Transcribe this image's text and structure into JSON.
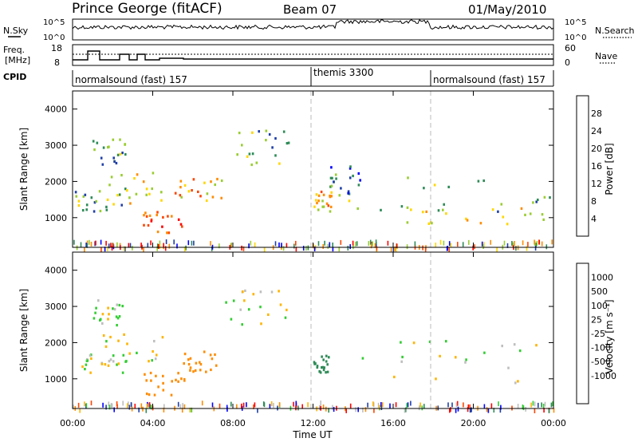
{
  "header": {
    "station": "Prince George (fitACF)",
    "beam": "Beam 07",
    "date": "01/May/2010"
  },
  "strips": {
    "nsky_label": "N.Sky",
    "nsearch_label": "N.Search",
    "nsky_ticks": [
      "10^5",
      "10^0"
    ],
    "nsearch_ticks": [
      "10^5",
      "10^0"
    ],
    "freq_label_1": "Freq.",
    "freq_label_2": "[MHz]",
    "freq_ticks": [
      "18",
      "8"
    ],
    "nave_label": "Nave",
    "nave_ticks": [
      "60",
      "0"
    ],
    "cpid_label": "CPID"
  },
  "cpid_segments": [
    {
      "label": "normalsound (fast) 157",
      "start_h": 0,
      "end_h": 12
    },
    {
      "label": "themis 3300",
      "start_h": 12,
      "end_h": 18
    },
    {
      "label": "normalsound (fast) 157",
      "start_h": 18,
      "end_h": 24
    }
  ],
  "colors": {
    "power": [
      "#0000ff",
      "#1f3fa8",
      "#2e8b57",
      "#9acd32",
      "#ffd700",
      "#ff8c00",
      "#ff4500",
      "#ff0000"
    ],
    "velocity": [
      "#ff0000",
      "#ff4500",
      "#ff8c00",
      "#ffb400",
      "#bebebe",
      "#bebebe",
      "#32cd32",
      "#2e8b57",
      "#1f3fa8",
      "#0000ff"
    ]
  },
  "chart_data": [
    {
      "type": "heatmap",
      "name": "power",
      "ylabel": "Slant Range [km]",
      "ylim": [
        180,
        4500
      ],
      "yticks": [
        "1000",
        "2000",
        "3000",
        "4000"
      ],
      "colorbar_label": "Power [dB]",
      "colorbar_ticks": [
        "4",
        "8",
        "12",
        "16",
        "20",
        "24",
        "28"
      ],
      "xlim_hours": [
        0,
        24
      ],
      "xticks": [
        "00:00",
        "04:00",
        "08:00",
        "12:00",
        "16:00",
        "20:00",
        "00:00"
      ],
      "xlabel": "Time UT",
      "echo_regions": [
        {
          "t": [
            0.9,
            2.6
          ],
          "r": [
            2500,
            3200
          ],
          "p": 12
        },
        {
          "t": [
            0.0,
            2.5
          ],
          "r": [
            1200,
            1800
          ],
          "p": 12
        },
        {
          "t": [
            1.5,
            4.5
          ],
          "r": [
            1400,
            2300
          ],
          "p": 16
        },
        {
          "t": [
            3.5,
            5.6
          ],
          "r": [
            600,
            1200
          ],
          "p": 26
        },
        {
          "t": [
            4.5,
            7.5
          ],
          "r": [
            1500,
            2100
          ],
          "p": 20
        },
        {
          "t": [
            7.5,
            10.8
          ],
          "r": [
            2400,
            3500
          ],
          "p": 12
        },
        {
          "t": [
            12.0,
            12.9
          ],
          "r": [
            1200,
            1800
          ],
          "p": 20
        },
        {
          "t": [
            12.8,
            14.5
          ],
          "r": [
            1600,
            2500
          ],
          "p": 8
        },
        {
          "t": [
            13.5,
            24.0
          ],
          "r": [
            1200,
            2200
          ],
          "p": 12
        },
        {
          "t": [
            16.5,
            24.0
          ],
          "r": [
            850,
            1300
          ],
          "p": 16
        }
      ]
    },
    {
      "type": "heatmap",
      "name": "velocity",
      "ylabel": "Slant Range [km]",
      "ylim": [
        180,
        4500
      ],
      "yticks": [
        "1000",
        "2000",
        "3000",
        "4000"
      ],
      "colorbar_label": "Velocity [m s⁻¹]",
      "colorbar_ticks": [
        "1000",
        "500",
        "100",
        "25",
        "-25",
        "-100",
        "-500",
        "-1000"
      ],
      "xlim_hours": [
        0,
        24
      ],
      "xticks": [
        "00:00",
        "04:00",
        "08:00",
        "12:00",
        "16:00",
        "20:00",
        "00:00"
      ],
      "xlabel": "Time UT",
      "echo_regions": [
        {
          "t": [
            0.9,
            2.6
          ],
          "r": [
            2500,
            3200
          ],
          "v": 0
        },
        {
          "t": [
            0.0,
            2.5
          ],
          "r": [
            1200,
            1800
          ],
          "v": 0
        },
        {
          "t": [
            1.5,
            4.5
          ],
          "r": [
            1400,
            2300
          ],
          "v": 0
        },
        {
          "t": [
            3.5,
            5.6
          ],
          "r": [
            500,
            1200
          ],
          "v": -300
        },
        {
          "t": [
            5.5,
            7.2
          ],
          "r": [
            1200,
            1800
          ],
          "v": -400
        },
        {
          "t": [
            7.5,
            10.8
          ],
          "r": [
            2400,
            3500
          ],
          "v": 0
        },
        {
          "t": [
            12.0,
            12.8
          ],
          "r": [
            1200,
            1700
          ],
          "v": 200
        },
        {
          "t": [
            13.5,
            24.0
          ],
          "r": [
            900,
            2200
          ],
          "v": 0
        }
      ]
    }
  ]
}
